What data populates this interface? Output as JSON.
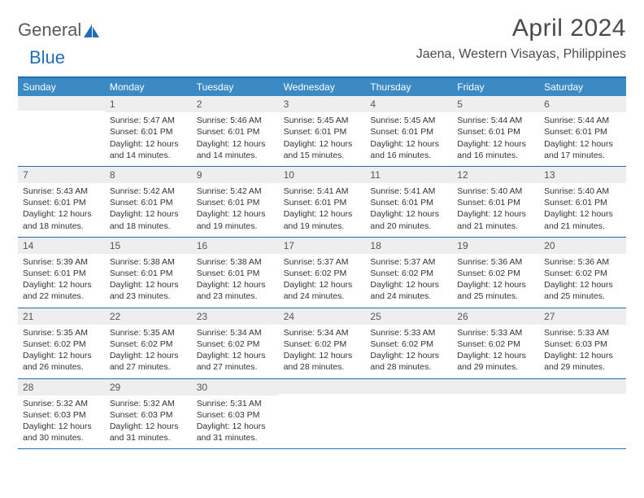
{
  "brand": {
    "part1": "General",
    "part2": "Blue"
  },
  "title": "April 2024",
  "location": "Jaena, Western Visayas, Philippines",
  "colors": {
    "header_bg": "#3b8ac4",
    "rule": "#1e6fb8",
    "daynum_bg": "#eeeeee",
    "text": "#333333",
    "brand_gray": "#5a5a5a",
    "brand_blue": "#1e6fb8"
  },
  "day_names": [
    "Sunday",
    "Monday",
    "Tuesday",
    "Wednesday",
    "Thursday",
    "Friday",
    "Saturday"
  ],
  "weeks": [
    [
      {
        "n": "",
        "sr": "",
        "ss": "",
        "dl": ""
      },
      {
        "n": "1",
        "sr": "Sunrise: 5:47 AM",
        "ss": "Sunset: 6:01 PM",
        "dl": "Daylight: 12 hours and 14 minutes."
      },
      {
        "n": "2",
        "sr": "Sunrise: 5:46 AM",
        "ss": "Sunset: 6:01 PM",
        "dl": "Daylight: 12 hours and 14 minutes."
      },
      {
        "n": "3",
        "sr": "Sunrise: 5:45 AM",
        "ss": "Sunset: 6:01 PM",
        "dl": "Daylight: 12 hours and 15 minutes."
      },
      {
        "n": "4",
        "sr": "Sunrise: 5:45 AM",
        "ss": "Sunset: 6:01 PM",
        "dl": "Daylight: 12 hours and 16 minutes."
      },
      {
        "n": "5",
        "sr": "Sunrise: 5:44 AM",
        "ss": "Sunset: 6:01 PM",
        "dl": "Daylight: 12 hours and 16 minutes."
      },
      {
        "n": "6",
        "sr": "Sunrise: 5:44 AM",
        "ss": "Sunset: 6:01 PM",
        "dl": "Daylight: 12 hours and 17 minutes."
      }
    ],
    [
      {
        "n": "7",
        "sr": "Sunrise: 5:43 AM",
        "ss": "Sunset: 6:01 PM",
        "dl": "Daylight: 12 hours and 18 minutes."
      },
      {
        "n": "8",
        "sr": "Sunrise: 5:42 AM",
        "ss": "Sunset: 6:01 PM",
        "dl": "Daylight: 12 hours and 18 minutes."
      },
      {
        "n": "9",
        "sr": "Sunrise: 5:42 AM",
        "ss": "Sunset: 6:01 PM",
        "dl": "Daylight: 12 hours and 19 minutes."
      },
      {
        "n": "10",
        "sr": "Sunrise: 5:41 AM",
        "ss": "Sunset: 6:01 PM",
        "dl": "Daylight: 12 hours and 19 minutes."
      },
      {
        "n": "11",
        "sr": "Sunrise: 5:41 AM",
        "ss": "Sunset: 6:01 PM",
        "dl": "Daylight: 12 hours and 20 minutes."
      },
      {
        "n": "12",
        "sr": "Sunrise: 5:40 AM",
        "ss": "Sunset: 6:01 PM",
        "dl": "Daylight: 12 hours and 21 minutes."
      },
      {
        "n": "13",
        "sr": "Sunrise: 5:40 AM",
        "ss": "Sunset: 6:01 PM",
        "dl": "Daylight: 12 hours and 21 minutes."
      }
    ],
    [
      {
        "n": "14",
        "sr": "Sunrise: 5:39 AM",
        "ss": "Sunset: 6:01 PM",
        "dl": "Daylight: 12 hours and 22 minutes."
      },
      {
        "n": "15",
        "sr": "Sunrise: 5:38 AM",
        "ss": "Sunset: 6:01 PM",
        "dl": "Daylight: 12 hours and 23 minutes."
      },
      {
        "n": "16",
        "sr": "Sunrise: 5:38 AM",
        "ss": "Sunset: 6:01 PM",
        "dl": "Daylight: 12 hours and 23 minutes."
      },
      {
        "n": "17",
        "sr": "Sunrise: 5:37 AM",
        "ss": "Sunset: 6:02 PM",
        "dl": "Daylight: 12 hours and 24 minutes."
      },
      {
        "n": "18",
        "sr": "Sunrise: 5:37 AM",
        "ss": "Sunset: 6:02 PM",
        "dl": "Daylight: 12 hours and 24 minutes."
      },
      {
        "n": "19",
        "sr": "Sunrise: 5:36 AM",
        "ss": "Sunset: 6:02 PM",
        "dl": "Daylight: 12 hours and 25 minutes."
      },
      {
        "n": "20",
        "sr": "Sunrise: 5:36 AM",
        "ss": "Sunset: 6:02 PM",
        "dl": "Daylight: 12 hours and 25 minutes."
      }
    ],
    [
      {
        "n": "21",
        "sr": "Sunrise: 5:35 AM",
        "ss": "Sunset: 6:02 PM",
        "dl": "Daylight: 12 hours and 26 minutes."
      },
      {
        "n": "22",
        "sr": "Sunrise: 5:35 AM",
        "ss": "Sunset: 6:02 PM",
        "dl": "Daylight: 12 hours and 27 minutes."
      },
      {
        "n": "23",
        "sr": "Sunrise: 5:34 AM",
        "ss": "Sunset: 6:02 PM",
        "dl": "Daylight: 12 hours and 27 minutes."
      },
      {
        "n": "24",
        "sr": "Sunrise: 5:34 AM",
        "ss": "Sunset: 6:02 PM",
        "dl": "Daylight: 12 hours and 28 minutes."
      },
      {
        "n": "25",
        "sr": "Sunrise: 5:33 AM",
        "ss": "Sunset: 6:02 PM",
        "dl": "Daylight: 12 hours and 28 minutes."
      },
      {
        "n": "26",
        "sr": "Sunrise: 5:33 AM",
        "ss": "Sunset: 6:02 PM",
        "dl": "Daylight: 12 hours and 29 minutes."
      },
      {
        "n": "27",
        "sr": "Sunrise: 5:33 AM",
        "ss": "Sunset: 6:03 PM",
        "dl": "Daylight: 12 hours and 29 minutes."
      }
    ],
    [
      {
        "n": "28",
        "sr": "Sunrise: 5:32 AM",
        "ss": "Sunset: 6:03 PM",
        "dl": "Daylight: 12 hours and 30 minutes."
      },
      {
        "n": "29",
        "sr": "Sunrise: 5:32 AM",
        "ss": "Sunset: 6:03 PM",
        "dl": "Daylight: 12 hours and 31 minutes."
      },
      {
        "n": "30",
        "sr": "Sunrise: 5:31 AM",
        "ss": "Sunset: 6:03 PM",
        "dl": "Daylight: 12 hours and 31 minutes."
      },
      {
        "n": "",
        "sr": "",
        "ss": "",
        "dl": ""
      },
      {
        "n": "",
        "sr": "",
        "ss": "",
        "dl": ""
      },
      {
        "n": "",
        "sr": "",
        "ss": "",
        "dl": ""
      },
      {
        "n": "",
        "sr": "",
        "ss": "",
        "dl": ""
      }
    ]
  ]
}
